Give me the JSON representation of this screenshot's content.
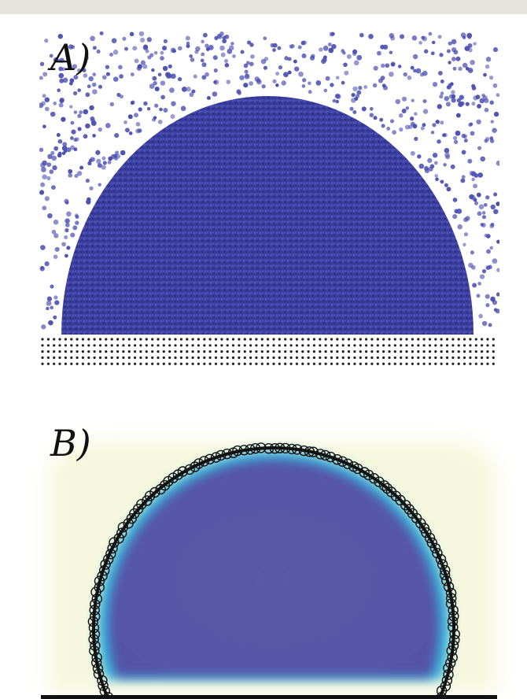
{
  "figure": {
    "panel_a": {
      "label": "A)",
      "droplet_color": "#3c3f9e",
      "vapor_color": "#4a4fb0",
      "substrate_color": "#222222"
    },
    "panel_b": {
      "label": "B)",
      "density_color": "#5b5aa8",
      "interface_color": "#34b9de",
      "fit_color": "#111111"
    }
  }
}
